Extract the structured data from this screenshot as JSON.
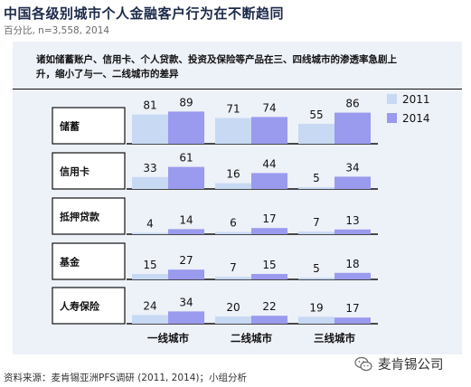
{
  "header": {
    "title": "中国各级别城市个人金融客户行为在不断趋同",
    "subtitle": "百分比, n=3,558, 2014"
  },
  "banner": {
    "text": "诸如储蓄账户、信用卡、个人贷款、投资及保险等产品在三、四线城市的渗透率急剧上升，缩小了与一、二线城市的差异"
  },
  "footer": {
    "source": "资料来源：麦肯锡亚洲PFS调研 (2011, 2014)；小组分析",
    "watermark": "麦肯锡公司"
  },
  "colors": {
    "series_2011": "#c7d9f3",
    "series_2014": "#9a9aee",
    "panel": "#edf1f8",
    "row_label_box": "#ffffff"
  },
  "chart_data": {
    "type": "bar",
    "groups": [
      "一线城市",
      "二线城市",
      "三线城市"
    ],
    "rows": [
      "储蓄",
      "信用卡",
      "抵押贷款",
      "基金",
      "人寿保险"
    ],
    "legend": [
      "2011",
      "2014"
    ],
    "legend_position": "right",
    "series": [
      {
        "name": "2011",
        "values": [
          [
            81,
            71,
            55
          ],
          [
            33,
            16,
            5
          ],
          [
            4,
            6,
            7
          ],
          [
            15,
            7,
            5
          ],
          [
            24,
            20,
            19
          ]
        ]
      },
      {
        "name": "2014",
        "values": [
          [
            89,
            74,
            86
          ],
          [
            61,
            44,
            34
          ],
          [
            14,
            17,
            13
          ],
          [
            27,
            15,
            18
          ],
          [
            34,
            22,
            17
          ]
        ]
      }
    ]
  }
}
